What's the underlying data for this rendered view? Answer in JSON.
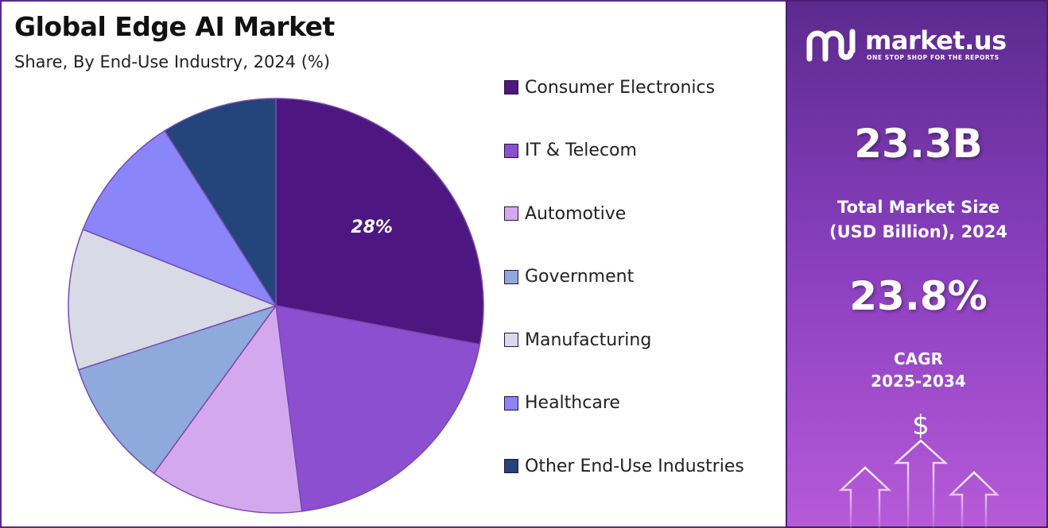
{
  "chart_data": {
    "type": "pie",
    "title": "Global Edge AI Market",
    "subtitle": "Share, By End-Use Industry, 2024 (%)",
    "legend_position": "right",
    "slices": [
      {
        "label": "Consumer Electronics",
        "value": 28,
        "color": "#4e1681",
        "data_label": "28%"
      },
      {
        "label": "IT & Telecom",
        "value": 20,
        "color": "#8b4fd0",
        "data_label": ""
      },
      {
        "label": "Automotive",
        "value": 12,
        "color": "#d4a8ee",
        "data_label": ""
      },
      {
        "label": "Government",
        "value": 10,
        "color": "#8ea9dc",
        "data_label": ""
      },
      {
        "label": "Manufacturing",
        "value": 11,
        "color": "#d8dae6",
        "data_label": ""
      },
      {
        "label": "Healthcare",
        "value": 10,
        "color": "#8a85f8",
        "data_label": ""
      },
      {
        "label": "Other End-Use Industries",
        "value": 9,
        "color": "#24447c",
        "data_label": ""
      }
    ]
  },
  "brand": {
    "name": "market.us",
    "tagline": "ONE STOP SHOP FOR THE REPORTS"
  },
  "stats": {
    "market_size_value": "23.3B",
    "market_size_label_line1": "Total Market Size",
    "market_size_label_line2": "(USD Billion), 2024",
    "cagr_value": "23.8%",
    "cagr_label_line1": "CAGR",
    "cagr_label_line2": "2025-2034"
  },
  "icons": {
    "logo": "market-us-logo-icon",
    "growth": "dollar-growth-arrows-icon"
  },
  "colors": {
    "panel_top": "#5c2a8e",
    "panel_bottom": "#b65ad8"
  }
}
